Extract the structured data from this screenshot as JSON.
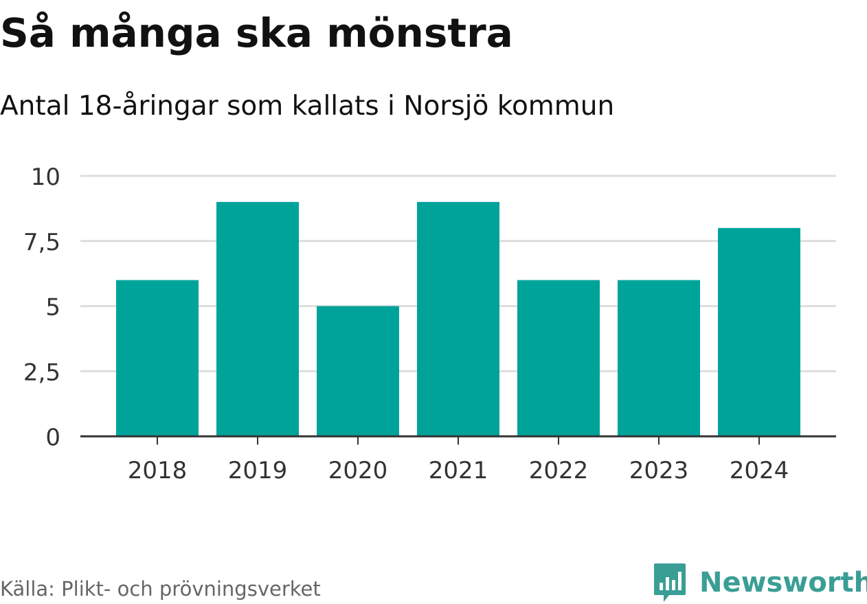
{
  "header": {
    "title": "Så många ska mönstra",
    "subtitle": "Antal 18-åringar som kallats i Norsjö kommun"
  },
  "footer": {
    "source": "Källa: Plikt- och prövningsverket",
    "brand_name": "Newsworthy",
    "brand_icon": "bar-chart-speech-bubble-icon"
  },
  "colors": {
    "bar": "#00a39a",
    "grid": "#dddddd",
    "axis": "#333333",
    "brand": "#3a9e95"
  },
  "chart_data": {
    "type": "bar",
    "categories": [
      "2018",
      "2019",
      "2020",
      "2021",
      "2022",
      "2023",
      "2024"
    ],
    "values": [
      6,
      9,
      5,
      9,
      6,
      6,
      8
    ],
    "yticks": [
      0,
      2.5,
      5,
      7.5,
      10
    ],
    "ytick_labels": [
      "0",
      "2,5",
      "5",
      "7,5",
      "10"
    ],
    "ylim": [
      0,
      10
    ],
    "grid": true,
    "xlabel": "",
    "ylabel": ""
  }
}
